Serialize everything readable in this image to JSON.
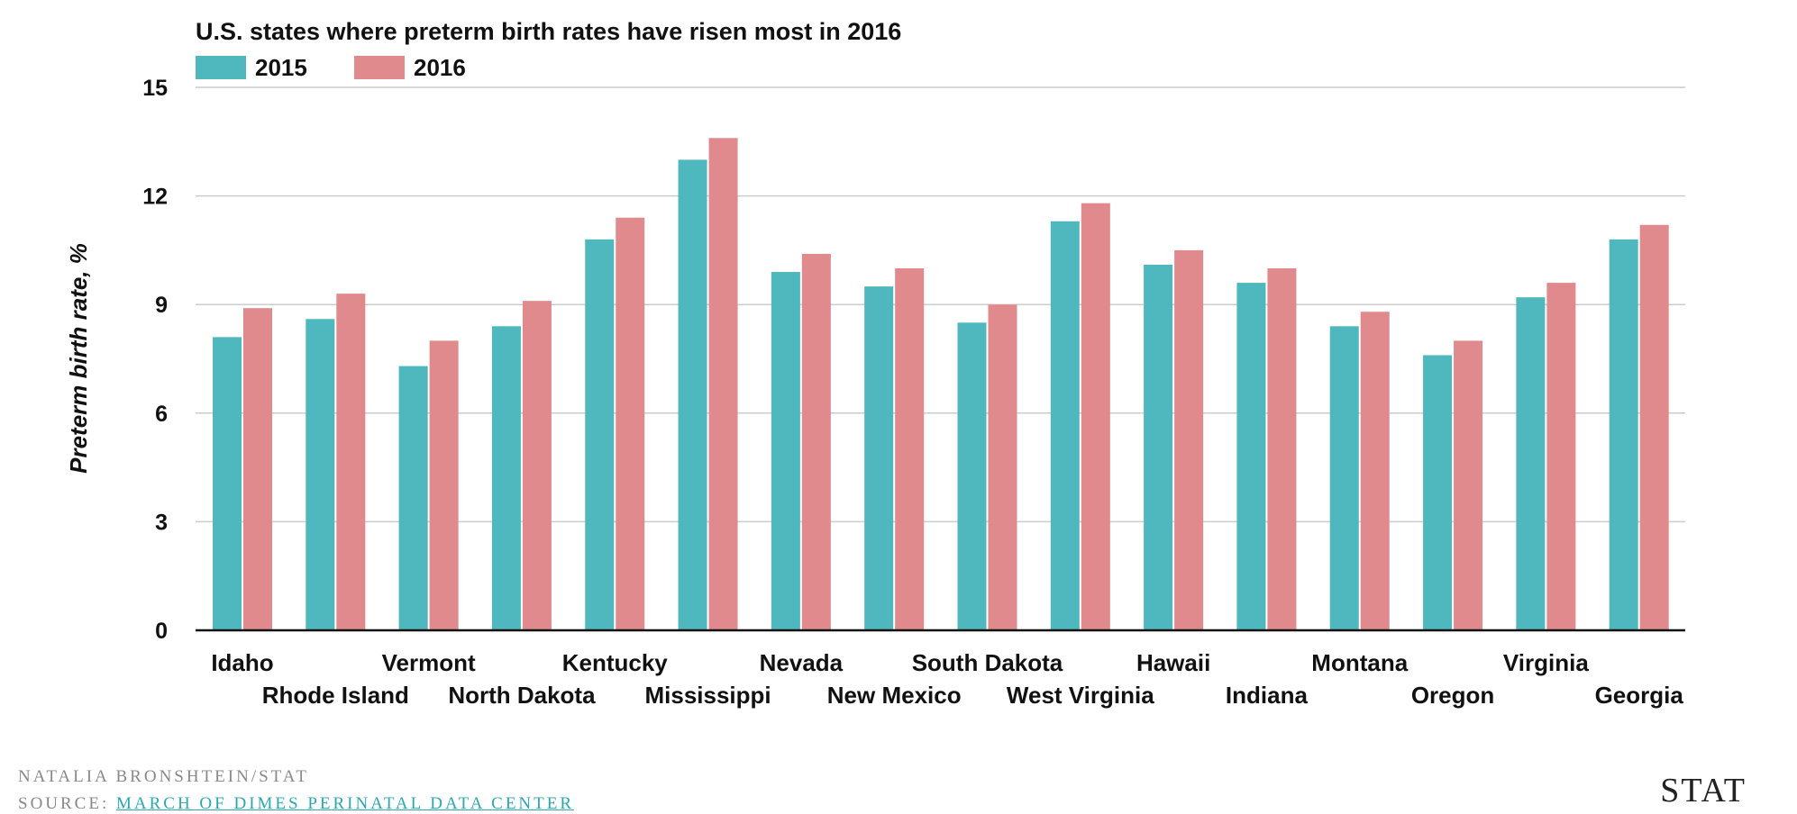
{
  "chart_data": {
    "type": "bar",
    "title": "U.S. states where preterm birth rates have risen most in 2016",
    "xlabel": "",
    "ylabel": "Preterm birth rate, %",
    "ylim": [
      0,
      15
    ],
    "yticks": [
      0,
      3,
      6,
      9,
      12,
      15
    ],
    "grid": true,
    "legend": "top-left",
    "categories": [
      "Idaho",
      "Rhode Island",
      "Vermont",
      "North Dakota",
      "Kentucky",
      "Mississippi",
      "Nevada",
      "New Mexico",
      "South Dakota",
      "West Virginia",
      "Hawaii",
      "Indiana",
      "Montana",
      "Oregon",
      "Virginia",
      "Georgia"
    ],
    "series": [
      {
        "name": "2015",
        "color": "#4fb8be",
        "values": [
          8.1,
          8.6,
          7.3,
          8.4,
          10.8,
          13.0,
          9.9,
          9.5,
          8.5,
          11.3,
          10.1,
          9.6,
          8.4,
          7.6,
          9.2,
          10.8
        ]
      },
      {
        "name": "2016",
        "color": "#e08a8d",
        "values": [
          8.9,
          9.3,
          8.0,
          9.1,
          11.4,
          13.6,
          10.4,
          10.0,
          9.0,
          11.8,
          10.5,
          10.0,
          8.8,
          8.0,
          9.6,
          11.2
        ]
      }
    ]
  },
  "footer": {
    "credit": "NATALIA BRONSHTEIN/STAT",
    "source_prefix": "SOURCE: ",
    "source_link": "MARCH OF DIMES PERINATAL DATA CENTER",
    "brand": "STAT"
  },
  "colors": {
    "series_2015": "#4fb8be",
    "series_2016": "#e08a8d",
    "grid": "#cccccc",
    "axis": "#111111",
    "link": "#2aa8ae"
  }
}
